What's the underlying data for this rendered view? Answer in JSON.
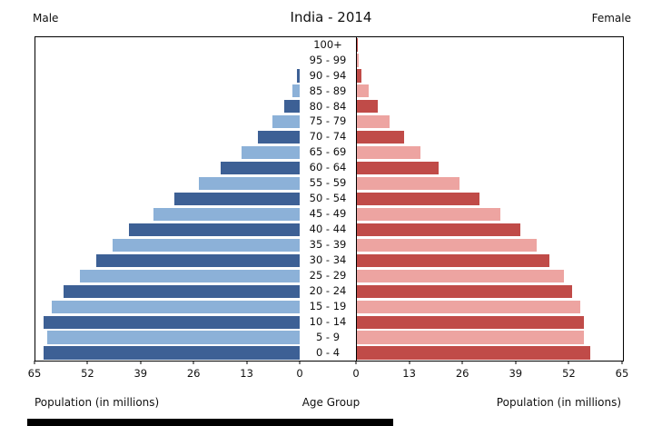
{
  "header": {
    "male_label": "Male",
    "title": "India - 2014",
    "female_label": "Female"
  },
  "footer": {
    "left_axis_label": "Population (in millions)",
    "center_label": "Age Group",
    "right_axis_label": "Population (in millions)"
  },
  "chart_data": {
    "type": "bar",
    "subtype": "population-pyramid",
    "title": "India - 2014",
    "xlabel": "Population (in millions)",
    "center_axis_label": "Age Group",
    "xlim": [
      0,
      65
    ],
    "axis_ticks": [
      0,
      13,
      26,
      39,
      52,
      65
    ],
    "age_groups": [
      "100+",
      "95 - 99",
      "90 - 94",
      "85 - 89",
      "80 - 84",
      "75 - 79",
      "70 - 74",
      "65 - 69",
      "60 - 64",
      "55 - 59",
      "50 - 54",
      "45 - 49",
      "40 - 44",
      "35 - 39",
      "30 - 34",
      "25 - 29",
      "20 - 24",
      "15 - 19",
      "10 - 14",
      "5 - 9",
      "0 - 4"
    ],
    "series": [
      {
        "name": "Male",
        "values": [
          0.05,
          0.3,
          0.9,
          2,
          4,
          7,
          10.5,
          14.5,
          19.5,
          25,
          31,
          36,
          42,
          46,
          50,
          54,
          58,
          61,
          63,
          62,
          63
        ]
      },
      {
        "name": "Female",
        "values": [
          0.08,
          0.4,
          1.2,
          2.8,
          5,
          8,
          11.5,
          15.5,
          20,
          25,
          30,
          35,
          40,
          44,
          47,
          50.5,
          52.5,
          54.5,
          55.5,
          55.5,
          57
        ]
      }
    ],
    "colors": {
      "male_dark": "#3d6095",
      "male_light": "#8cb1d8",
      "female_dark": "#c04b48",
      "female_light": "#eda4a1"
    },
    "legend_position": "none",
    "grid": false
  }
}
